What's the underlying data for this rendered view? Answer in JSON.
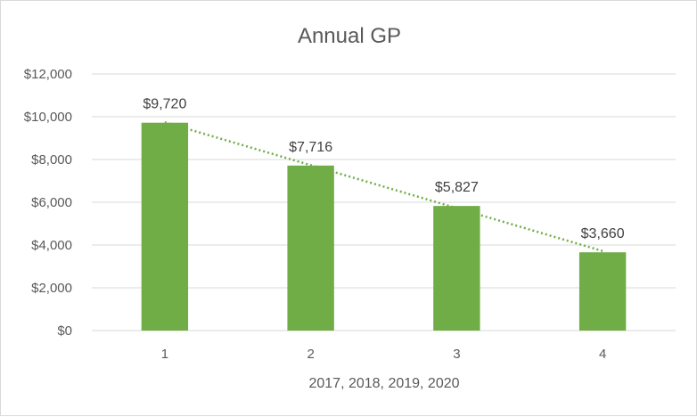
{
  "chart_data": {
    "type": "bar",
    "title": "Annual GP",
    "xlabel": "2017, 2018, 2019, 2020",
    "ylabel": "",
    "categories": [
      "1",
      "2",
      "3",
      "4"
    ],
    "values": [
      9720,
      7716,
      5827,
      3660
    ],
    "data_labels": [
      "$9,720",
      "$7,716",
      "$5,827",
      "$3,660"
    ],
    "ylim": [
      0,
      12000
    ],
    "yticks": [
      0,
      2000,
      4000,
      6000,
      8000,
      10000,
      12000
    ],
    "ytick_labels": [
      "$0",
      "$2,000",
      "$4,000",
      "$6,000",
      "$8,000",
      "$10,000",
      "$12,000"
    ],
    "grid": true,
    "legend": "none",
    "trendline": "linear",
    "bar_color": "#70ad47",
    "trendline_color": "#70ad47"
  }
}
